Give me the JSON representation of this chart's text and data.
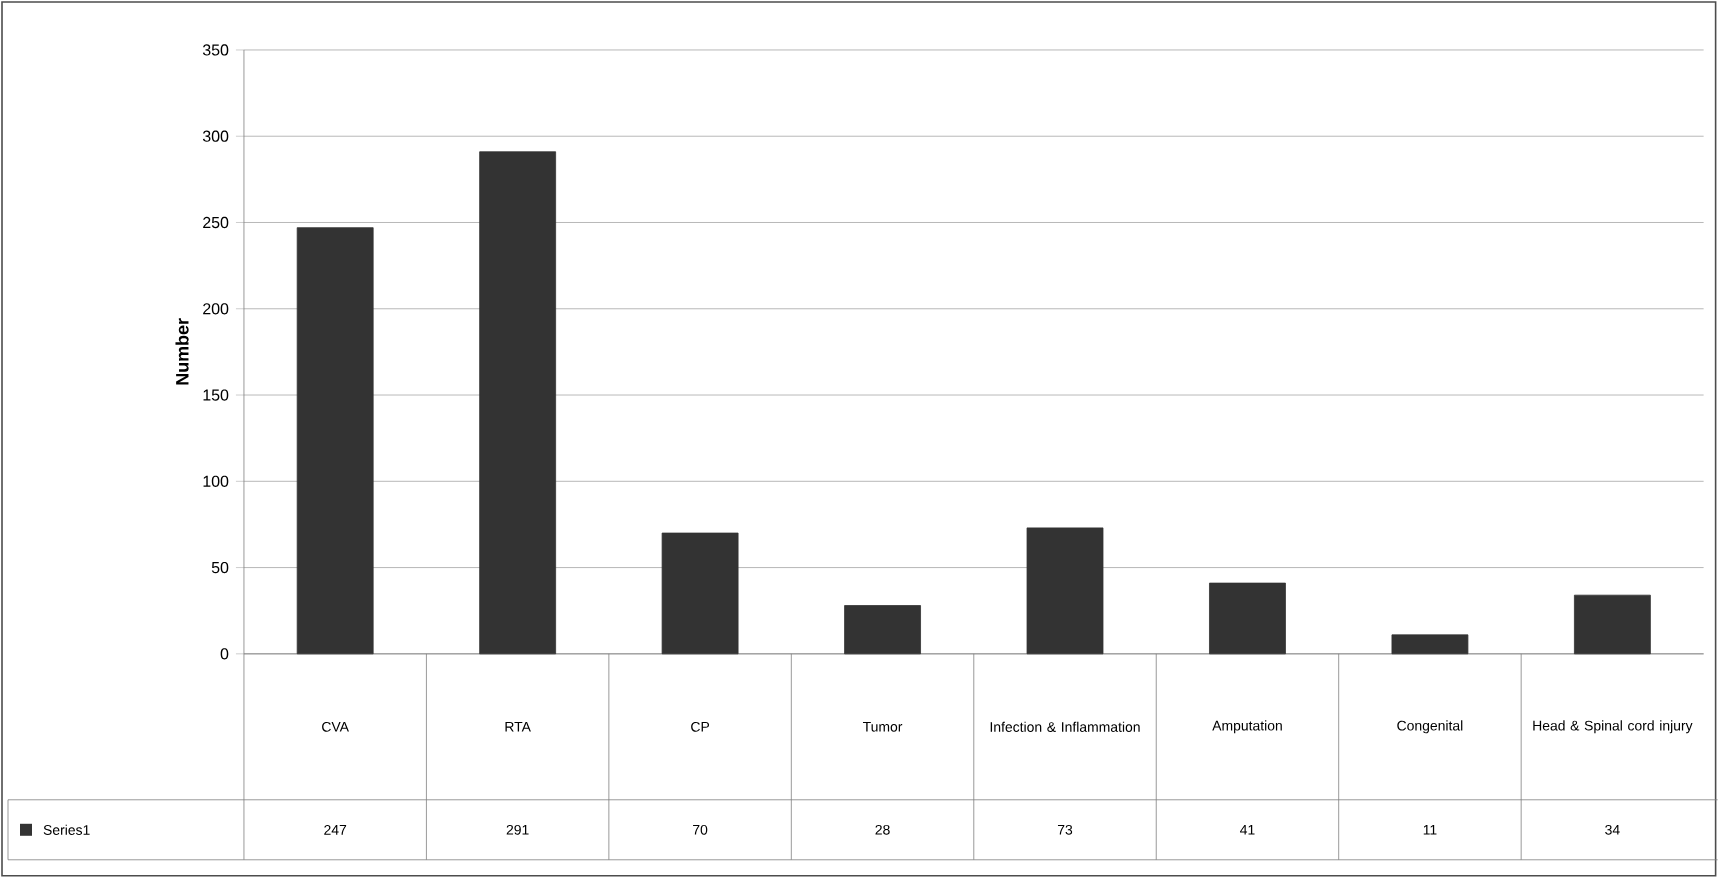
{
  "chart_data": {
    "type": "bar",
    "ylabel": "Number",
    "categories": [
      "CVA",
      "RTA",
      "CP",
      "Tumor",
      "Infection & Inflammation",
      "Amputation",
      "Congenital",
      "Head & Spinal cord injury"
    ],
    "series": [
      {
        "name": "Series1",
        "color": "#333333",
        "values": [
          247,
          291,
          70,
          28,
          73,
          41,
          11,
          34
        ]
      }
    ],
    "ylim": [
      0,
      350
    ],
    "yticks": [
      0,
      50,
      100,
      150,
      200,
      250,
      300,
      350
    ],
    "grid": "y",
    "data_labels": true
  }
}
